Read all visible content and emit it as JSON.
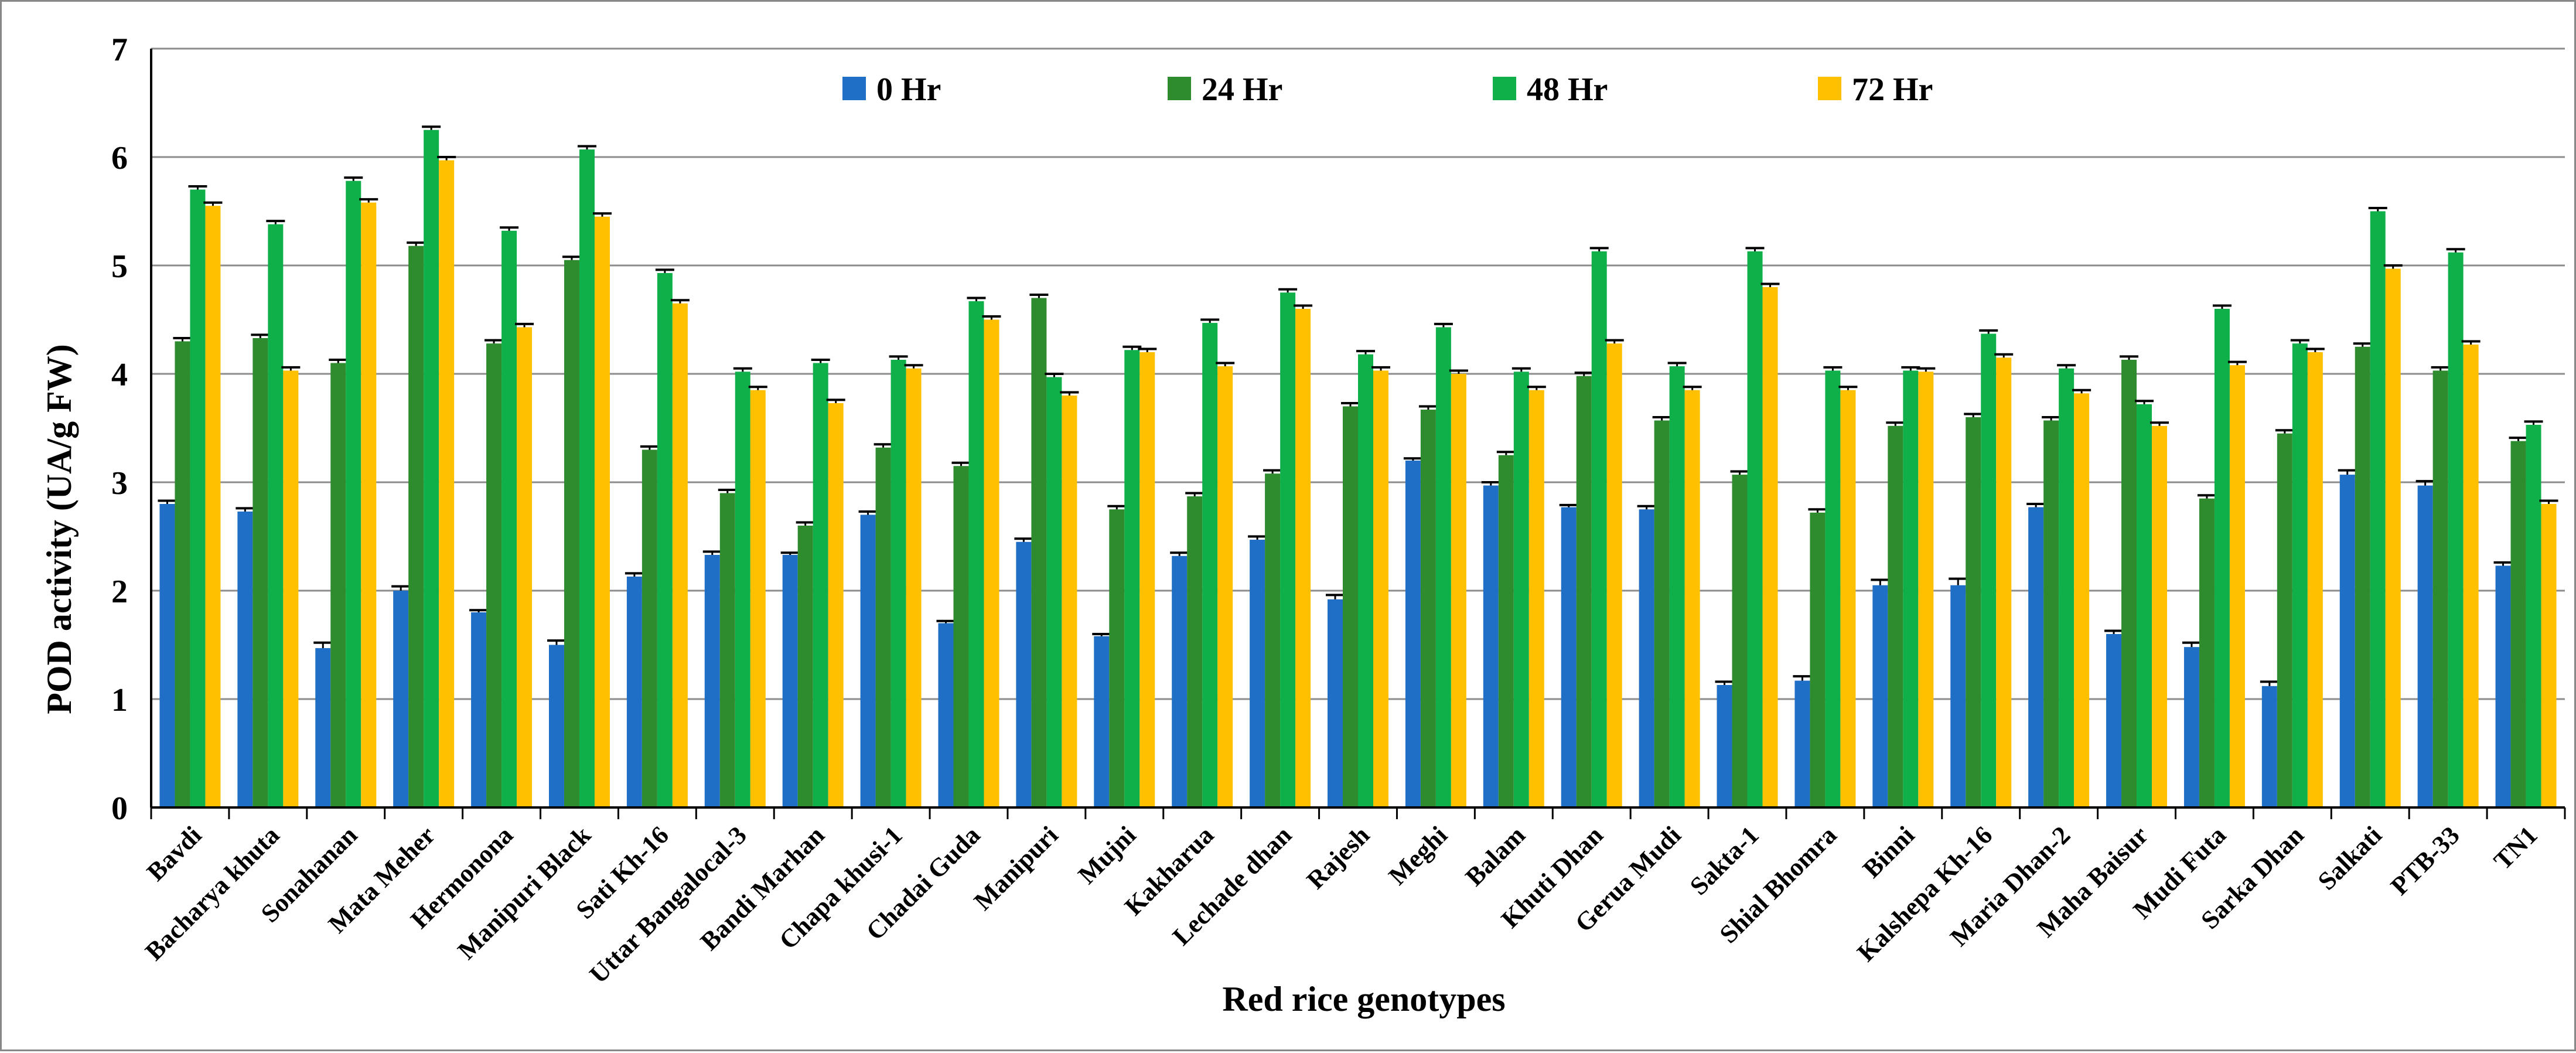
{
  "chart_data": {
    "type": "bar",
    "title": "",
    "xlabel": "Red rice genotypes",
    "ylabel": "POD activity (UA/g FW)",
    "ylim": [
      0,
      7
    ],
    "yticks": [
      "0",
      "1",
      "2",
      "3",
      "4",
      "5",
      "6",
      "7"
    ],
    "grid": true,
    "legend_position": "top-center",
    "categories": [
      "Bavdi",
      "Bacharya khuta",
      "Sonahanan",
      "Mata Meher",
      "Hermonona",
      "Manipuri Black",
      "Sati Kh-16",
      "Uttar Bangalocal-3",
      "Bandi Marhan",
      "Chapa khusi-1",
      "Chadai Guda",
      "Manipuri",
      "Mujni",
      "Kakharua",
      "Lechade dhan",
      "Rajesh",
      "Meghi",
      "Balam",
      "Khuti Dhan",
      "Gerua Mudi",
      "Sakta-1",
      "Shial Bhomra",
      "Binni",
      "Kalshepa Kh-16",
      "Maria Dhan-2",
      "Maha Baisur",
      "Mudi Futa",
      "Sarka Dhan",
      "Salkati",
      "PTB-33",
      "TN1"
    ],
    "series": [
      {
        "name": "0 Hr",
        "color": "#1f6fc6",
        "values": [
          2.8,
          2.73,
          1.47,
          2.0,
          1.8,
          1.5,
          2.13,
          2.33,
          2.33,
          2.7,
          1.7,
          2.45,
          1.58,
          2.32,
          2.47,
          1.92,
          3.2,
          2.97,
          2.77,
          2.75,
          1.13,
          1.17,
          2.05,
          2.05,
          2.77,
          1.6,
          1.48,
          1.12,
          3.07,
          2.97,
          2.23
        ],
        "errors": [
          0.03,
          0.03,
          0.05,
          0.04,
          0.02,
          0.04,
          0.03,
          0.03,
          0.02,
          0.03,
          0.02,
          0.03,
          0.02,
          0.03,
          0.03,
          0.04,
          0.02,
          0.03,
          0.02,
          0.03,
          0.03,
          0.04,
          0.05,
          0.06,
          0.03,
          0.03,
          0.04,
          0.04,
          0.04,
          0.04,
          0.03
        ]
      },
      {
        "name": "24 Hr",
        "color": "#2e8b2e",
        "values": [
          4.3,
          4.33,
          4.1,
          5.18,
          4.28,
          5.05,
          3.3,
          2.9,
          2.6,
          3.32,
          3.15,
          4.7,
          2.75,
          2.87,
          3.08,
          3.7,
          3.67,
          3.25,
          3.98,
          3.57,
          3.07,
          2.72,
          3.52,
          3.6,
          3.57,
          4.13,
          2.85,
          3.45,
          4.25,
          4.03,
          3.38
        ]
      },
      {
        "name": "48 Hr",
        "color": "#0fb04a",
        "values": [
          5.7,
          5.38,
          5.78,
          6.25,
          5.32,
          6.07,
          4.93,
          4.02,
          4.1,
          4.13,
          4.67,
          3.97,
          4.22,
          4.47,
          4.75,
          4.18,
          4.43,
          4.02,
          5.13,
          4.07,
          5.13,
          4.03,
          4.03,
          4.37,
          4.05,
          3.72,
          4.6,
          4.28,
          5.5,
          5.12,
          3.53
        ]
      },
      {
        "name": "72 Hr",
        "color": "#ffc000",
        "values": [
          5.55,
          4.03,
          5.58,
          5.97,
          4.43,
          5.45,
          4.65,
          3.85,
          3.73,
          4.05,
          4.5,
          3.8,
          4.2,
          4.07,
          4.6,
          4.03,
          4.0,
          3.85,
          4.28,
          3.85,
          4.8,
          3.85,
          4.02,
          4.15,
          3.82,
          3.52,
          4.08,
          4.2,
          4.97,
          4.27,
          2.8
        ]
      }
    ]
  }
}
